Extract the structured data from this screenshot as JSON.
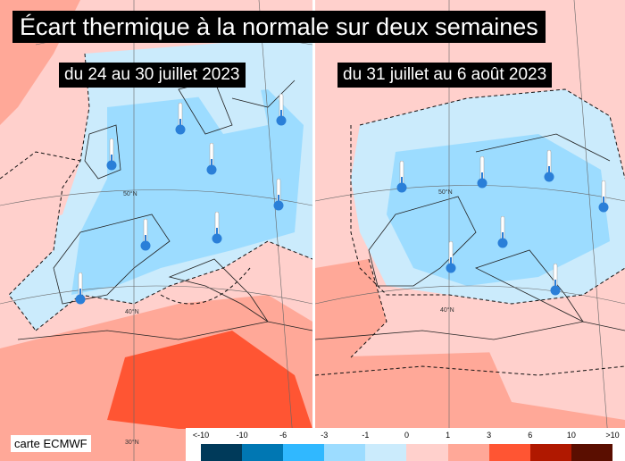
{
  "title": "Écart thermique à la normale sur deux semaines",
  "maps": [
    {
      "period": "du 24 au 30 juillet 2023",
      "lat_labels": [
        "50°N",
        "40°N",
        "30°N"
      ]
    },
    {
      "period": "du 31 juillet au 6 août 2023",
      "lat_labels": [
        "50°N",
        "40°N"
      ]
    }
  ],
  "credit": "carte ECMWF",
  "legend": {
    "labels": [
      "<-10",
      "-10",
      "-6",
      "-3",
      "-1",
      "0",
      "1",
      "3",
      "6",
      "10",
      ">10"
    ],
    "colors": [
      "#003a5a",
      "#0077b3",
      "#30b8ff",
      "#9cdcff",
      "#cbebfc",
      "#ffd0cc",
      "#ffa898",
      "#ff5533",
      "#b01800",
      "#5a0e00"
    ]
  },
  "icons": {
    "thermometer": "thermometer-cold-icon"
  }
}
